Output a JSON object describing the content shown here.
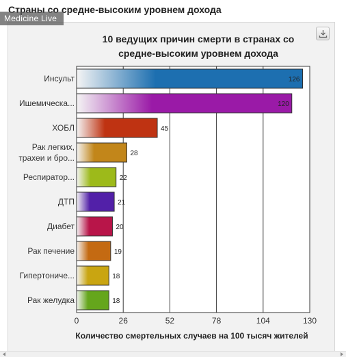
{
  "page": {
    "heading": "Страны со средне-высоким уровнем дохода",
    "watermark": "Medicine Live"
  },
  "toolbar": {
    "download_icon": "download-icon"
  },
  "chart_data": {
    "type": "bar",
    "orientation": "horizontal",
    "title_line1": "10 ведущих причин смерти в странах со",
    "title_line2": "средне-высоким уровнем дохода",
    "xlabel": "Количество смертельных случаев на 100 тысяч жителей",
    "ylabel": "",
    "xlim": [
      0,
      130
    ],
    "xticks": [
      0,
      26,
      52,
      78,
      104,
      130
    ],
    "grid": true,
    "categories": [
      [
        "Инсульт"
      ],
      [
        "Ишемическа..."
      ],
      [
        "ХОБЛ"
      ],
      [
        "Рак легких,",
        "трахеи и бро..."
      ],
      [
        "Респиратор..."
      ],
      [
        "ДТП"
      ],
      [
        "Диабет"
      ],
      [
        "Рак печение"
      ],
      [
        "Гипертониче..."
      ],
      [
        "Рак желудка"
      ]
    ],
    "values": [
      126,
      120,
      45,
      28,
      22,
      21,
      20,
      19,
      18,
      18
    ],
    "colors": [
      "#1d6fb0",
      "#9a1aa7",
      "#bf3312",
      "#c2861a",
      "#9dba1a",
      "#5220a8",
      "#b81549",
      "#c46a12",
      "#c9a511",
      "#65a61c"
    ]
  }
}
